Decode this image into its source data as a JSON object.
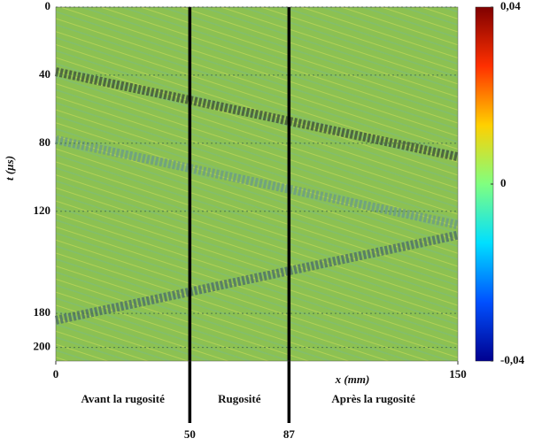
{
  "chart_data": {
    "type": "heatmap",
    "xlabel": "x (mm)",
    "ylabel": "t (µs)",
    "xlim": [
      0,
      150
    ],
    "xticks": [
      0,
      150
    ],
    "ylim": [
      0,
      208
    ],
    "yticks": [
      0,
      40,
      80,
      120,
      180,
      200
    ],
    "grid": true,
    "background_color": "#8cc152",
    "clim": [
      -0.04,
      0.04
    ],
    "colorbar_ticks": [
      {
        "value": 0.04,
        "label": "0,04"
      },
      0,
      {
        "value": -0.04,
        "label": "-0,04"
      }
    ],
    "colormap": [
      "#00008f",
      "#0050ff",
      "#00dfff",
      "#80ff80",
      "#ffd000",
      "#ff3000",
      "#800000"
    ],
    "boundaries": [
      {
        "x": 50,
        "label": "50"
      },
      {
        "x": 87,
        "label": "87"
      }
    ],
    "regions": [
      "Avant la rugosité",
      "Rugosité",
      "Après la rugosité"
    ],
    "wavefronts": [
      {
        "x": [
          0,
          150
        ],
        "t": [
          38,
          88
        ],
        "color": "#3a4a3a"
      },
      {
        "x": [
          0,
          150
        ],
        "t": [
          78,
          128
        ],
        "color": "#6a9a8a"
      },
      {
        "x": [
          0,
          150
        ],
        "t": [
          184,
          134
        ],
        "color": "#4a6a6a"
      }
    ]
  }
}
